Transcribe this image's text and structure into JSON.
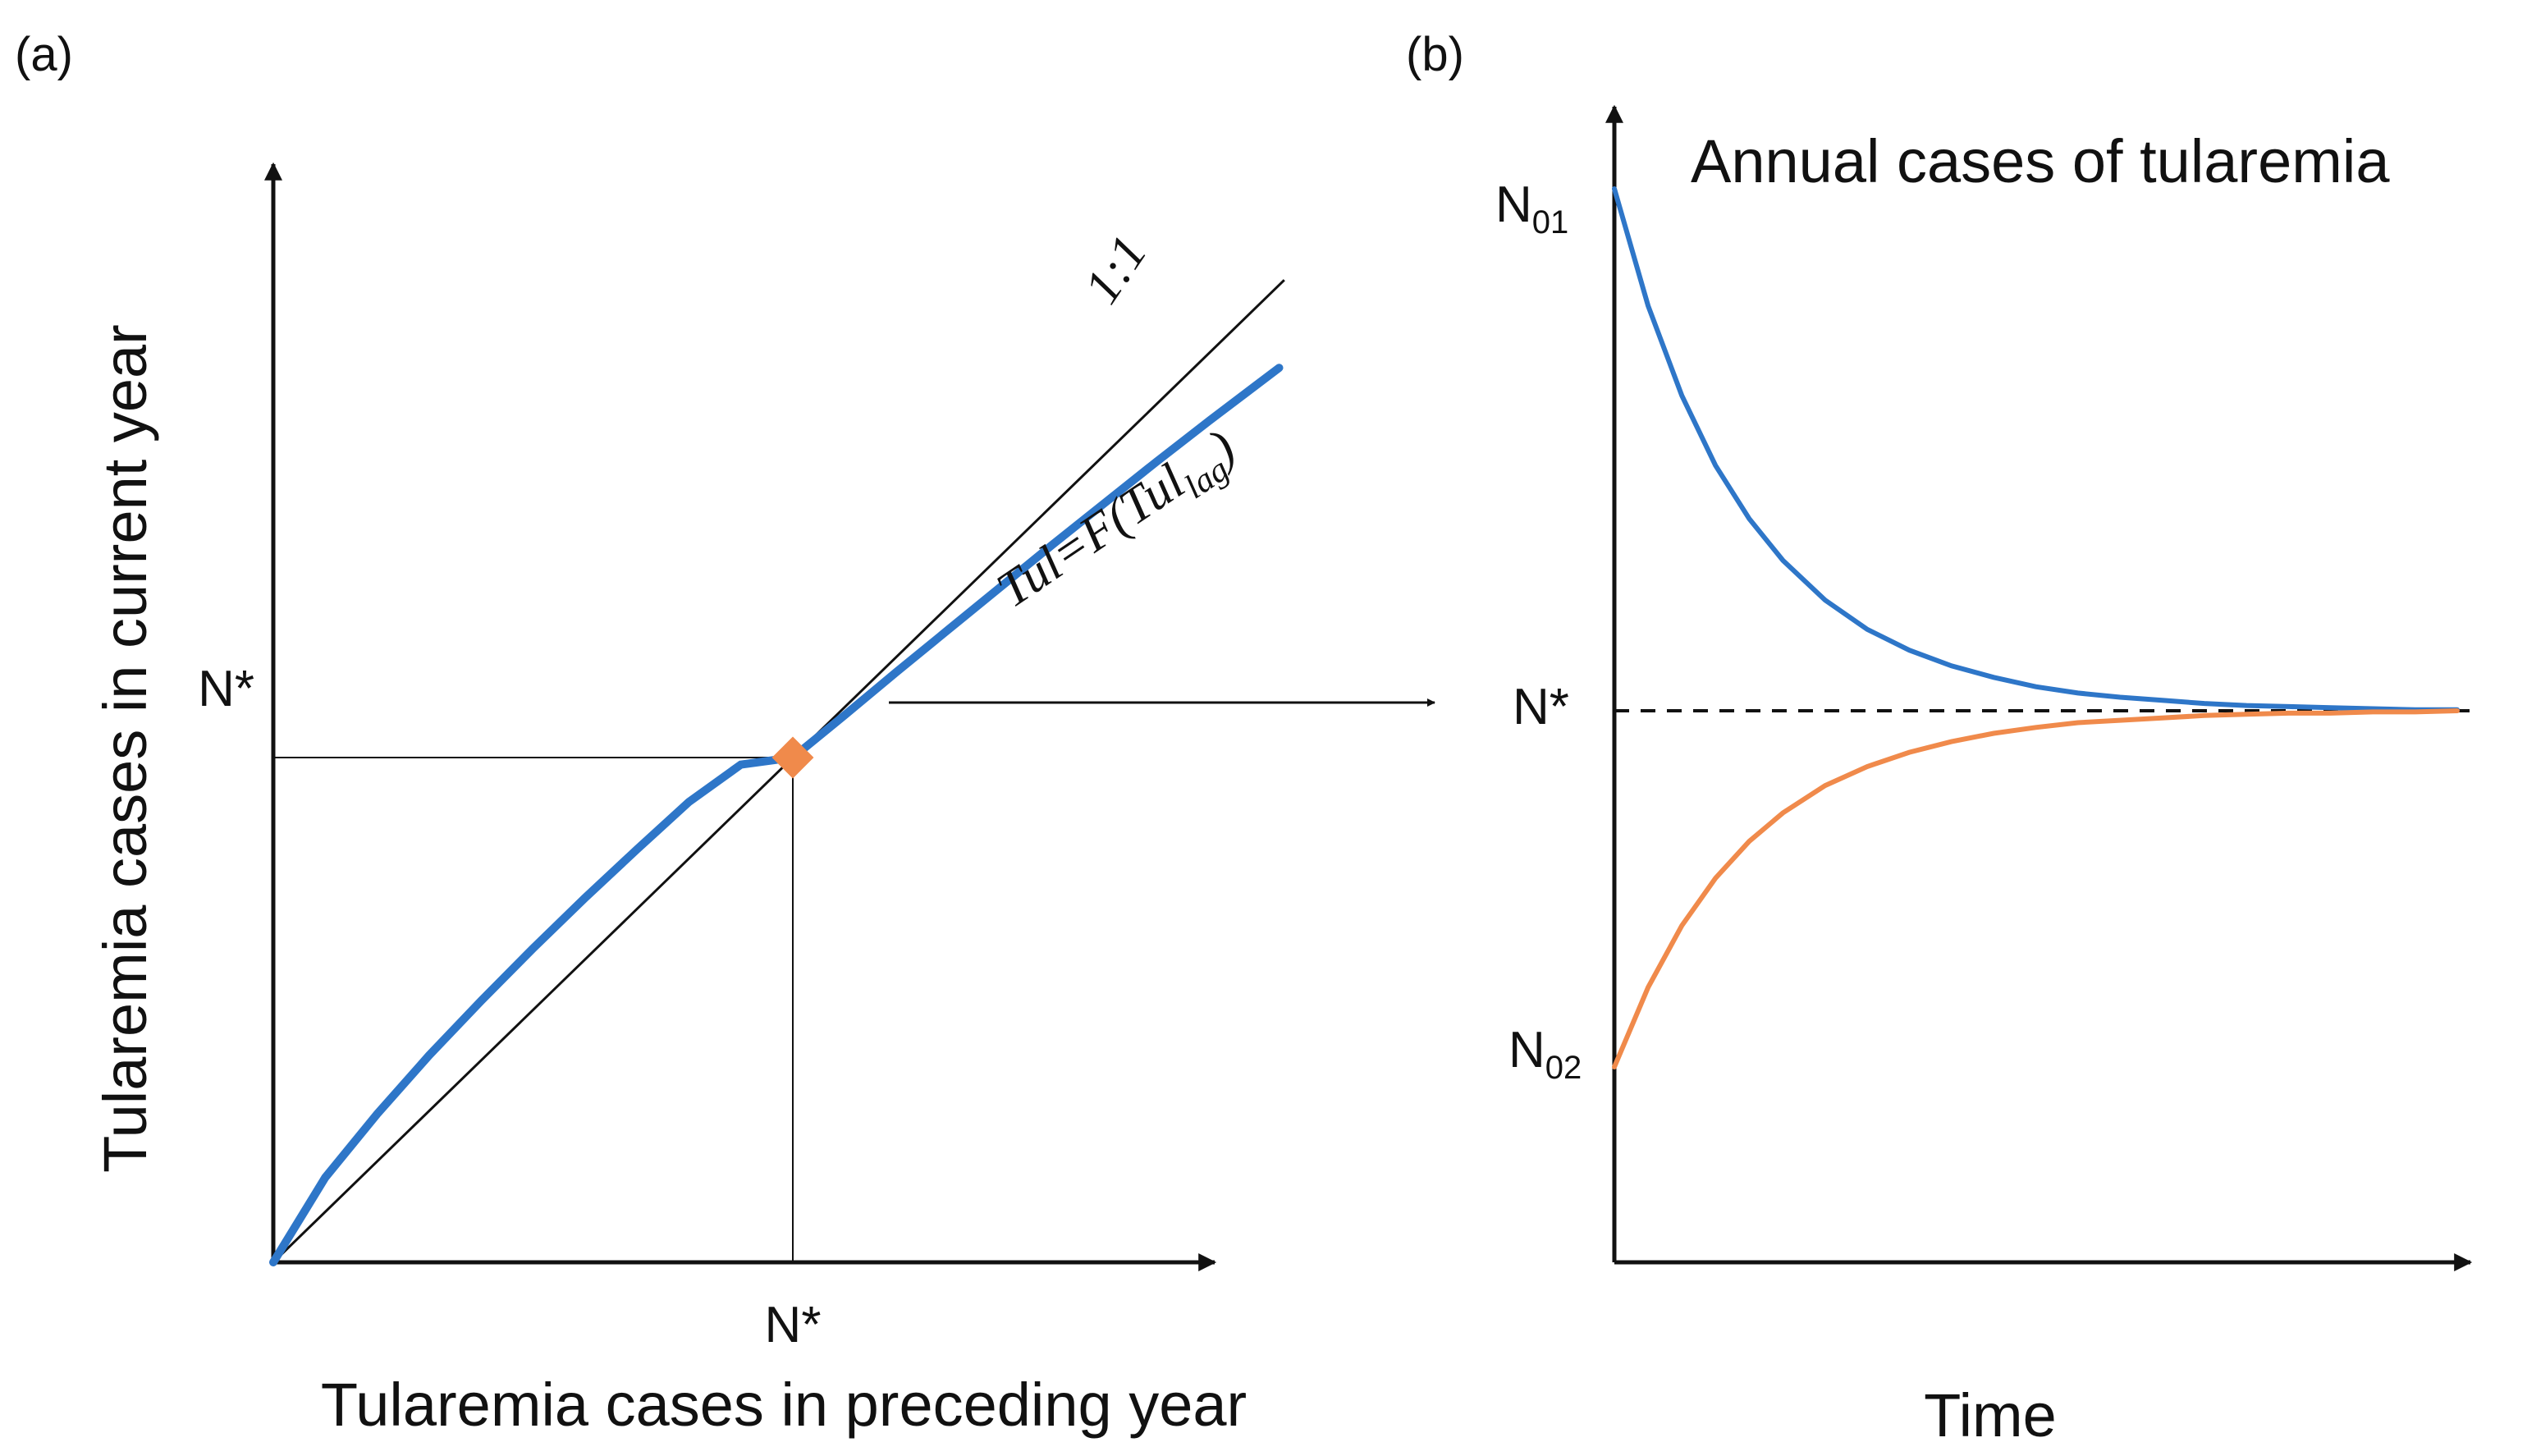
{
  "colors": {
    "blue": "#2e76c8",
    "orange": "#f08a4b",
    "black": "#111111"
  },
  "chart_data": [
    {
      "type": "line",
      "panel_label": "(a)",
      "xlabel": "Tularemia cases in preceding year",
      "ylabel": "Tularemia cases in current year",
      "equilibrium_label_x": "N*",
      "equilibrium_label_y": "N*",
      "xlim": [
        0,
        1
      ],
      "ylim": [
        0,
        1
      ],
      "equilibrium": {
        "x": 0.5,
        "y": 0.5
      },
      "series": [
        {
          "name": "1:1",
          "label": "1:1",
          "x": [
            0,
            0.973
          ],
          "y": [
            0,
            0.973
          ]
        },
        {
          "name": "Tul=F(Tul_lag)",
          "label_main": "Tul=F(Tul",
          "label_sub": "lag",
          "label_close": ")",
          "x": [
            0,
            0.05,
            0.1,
            0.15,
            0.2,
            0.25,
            0.3,
            0.35,
            0.4,
            0.45,
            0.5,
            0.55,
            0.6,
            0.65,
            0.7,
            0.75,
            0.8,
            0.85,
            0.9,
            0.968
          ],
          "y": [
            0,
            0.084,
            0.147,
            0.205,
            0.259,
            0.311,
            0.361,
            0.409,
            0.456,
            0.501,
            0.5,
            0.542,
            0.585,
            0.627,
            0.669,
            0.711,
            0.752,
            0.793,
            0.833,
            0.886
          ]
        }
      ]
    },
    {
      "type": "line",
      "panel_label": "(b)",
      "title": "Annual cases of tularemia",
      "xlabel": "Time",
      "y_markers": {
        "N01": 1.0,
        "Nstar": 0.5,
        "N02": 0.2
      },
      "N01_base": "N",
      "N01_sub": "01",
      "N02_base": "N",
      "N02_sub": "02",
      "Nstar_label": "N*",
      "xlim": [
        0,
        1
      ],
      "series": [
        {
          "name": "from N01",
          "x": [
            0,
            0.04,
            0.08,
            0.12,
            0.16,
            0.2,
            0.25,
            0.3,
            0.35,
            0.4,
            0.45,
            0.5,
            0.55,
            0.6,
            0.65,
            0.7,
            0.75,
            0.8,
            0.85,
            0.9,
            0.95,
            1.0
          ],
          "y": [
            1.0,
            0.888,
            0.802,
            0.735,
            0.684,
            0.644,
            0.606,
            0.578,
            0.558,
            0.543,
            0.532,
            0.523,
            0.517,
            0.513,
            0.51,
            0.507,
            0.505,
            0.504,
            0.503,
            0.502,
            0.501,
            0.501
          ]
        },
        {
          "name": "from N02",
          "x": [
            0,
            0.04,
            0.08,
            0.12,
            0.16,
            0.2,
            0.25,
            0.3,
            0.35,
            0.4,
            0.45,
            0.5,
            0.55,
            0.6,
            0.65,
            0.7,
            0.75,
            0.8,
            0.85,
            0.9,
            0.95,
            1.0
          ],
          "y": [
            0.2,
            0.267,
            0.319,
            0.359,
            0.39,
            0.414,
            0.437,
            0.453,
            0.465,
            0.474,
            0.481,
            0.486,
            0.49,
            0.492,
            0.494,
            0.496,
            0.497,
            0.498,
            0.498,
            0.499,
            0.499,
            0.5
          ]
        }
      ]
    }
  ]
}
